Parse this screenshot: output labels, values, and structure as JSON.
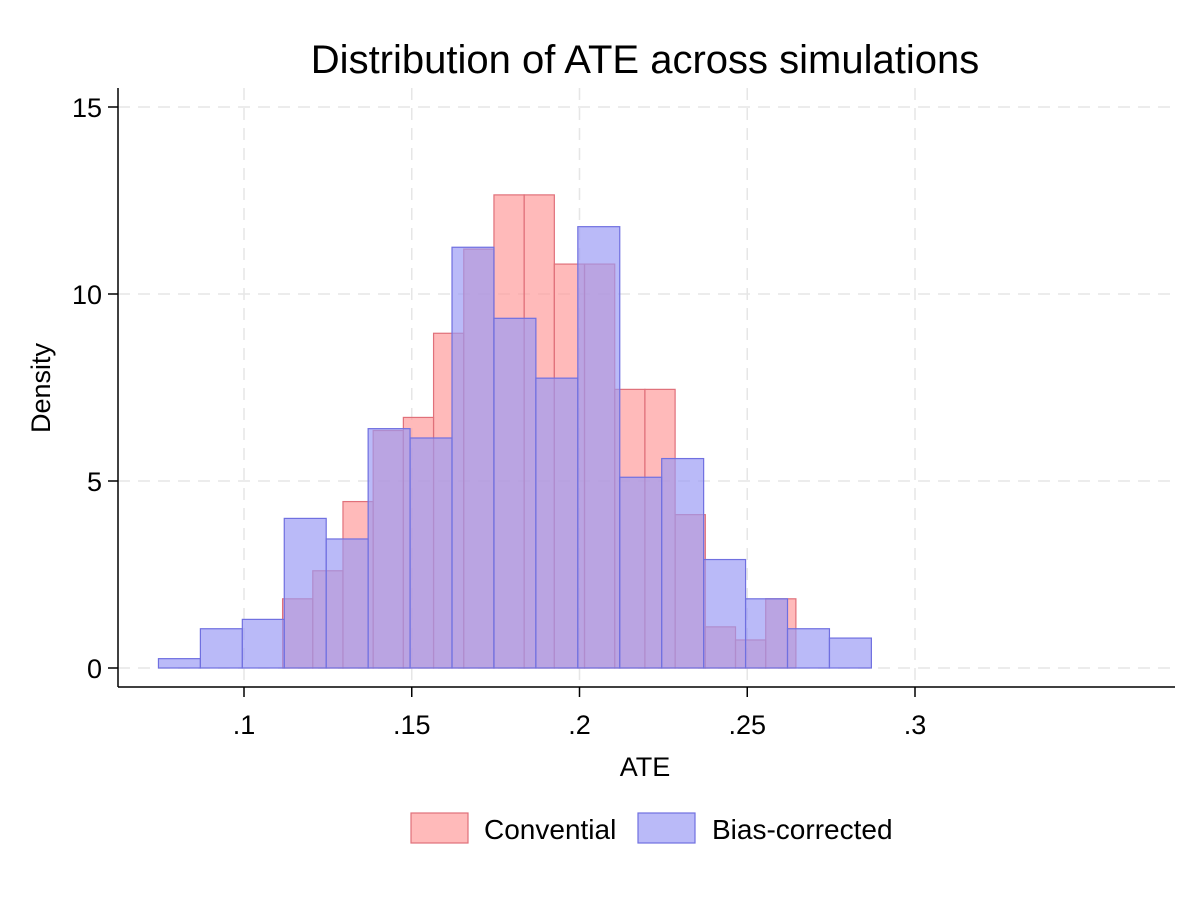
{
  "chart_data": {
    "type": "bar",
    "subtype": "overlaid-histogram",
    "title": "Distribution of ATE across simulations",
    "xlabel": "ATE",
    "ylabel": "Density",
    "xlim": [
      0.075,
      0.3
    ],
    "ylim": [
      -0.5,
      15.5
    ],
    "grid": true,
    "legend_position": "bottom",
    "x_ticks": [
      {
        "value": 0.1,
        "label": ".1"
      },
      {
        "value": 0.15,
        "label": ".15"
      },
      {
        "value": 0.2,
        "label": ".2"
      },
      {
        "value": 0.25,
        "label": ".25"
      },
      {
        "value": 0.3,
        "label": ".3"
      }
    ],
    "y_ticks": [
      {
        "value": 0,
        "label": "0"
      },
      {
        "value": 5,
        "label": "5"
      },
      {
        "value": 10,
        "label": "10"
      },
      {
        "value": 15,
        "label": "15"
      }
    ],
    "series": [
      {
        "name": "Convential",
        "fill": "#ff9a9a",
        "stroke": "#e0707a",
        "bins": [
          {
            "x0": 0.1115,
            "x1": 0.1205,
            "density": 1.85
          },
          {
            "x0": 0.1205,
            "x1": 0.1295,
            "density": 2.6
          },
          {
            "x0": 0.1295,
            "x1": 0.1385,
            "density": 4.45
          },
          {
            "x0": 0.1385,
            "x1": 0.1475,
            "density": 6.35
          },
          {
            "x0": 0.1475,
            "x1": 0.1565,
            "density": 6.7
          },
          {
            "x0": 0.1565,
            "x1": 0.1655,
            "density": 8.95
          },
          {
            "x0": 0.1655,
            "x1": 0.1745,
            "density": 11.2
          },
          {
            "x0": 0.1745,
            "x1": 0.1835,
            "density": 12.65
          },
          {
            "x0": 0.1835,
            "x1": 0.1925,
            "density": 12.65
          },
          {
            "x0": 0.1925,
            "x1": 0.2015,
            "density": 10.8
          },
          {
            "x0": 0.2015,
            "x1": 0.2105,
            "density": 10.8
          },
          {
            "x0": 0.2105,
            "x1": 0.2195,
            "density": 7.45
          },
          {
            "x0": 0.2195,
            "x1": 0.2285,
            "density": 7.45
          },
          {
            "x0": 0.2285,
            "x1": 0.2375,
            "density": 4.1
          },
          {
            "x0": 0.2375,
            "x1": 0.2465,
            "density": 1.1
          },
          {
            "x0": 0.2465,
            "x1": 0.2555,
            "density": 0.75
          },
          {
            "x0": 0.2555,
            "x1": 0.2645,
            "density": 1.85
          }
        ]
      },
      {
        "name": "Bias-corrected",
        "fill": "#9a9af5",
        "stroke": "#7070e0",
        "bins": [
          {
            "x0": 0.0745,
            "x1": 0.087,
            "density": 0.25
          },
          {
            "x0": 0.087,
            "x1": 0.0995,
            "density": 1.05
          },
          {
            "x0": 0.0995,
            "x1": 0.112,
            "density": 1.3
          },
          {
            "x0": 0.112,
            "x1": 0.1245,
            "density": 4.0
          },
          {
            "x0": 0.1245,
            "x1": 0.137,
            "density": 3.45
          },
          {
            "x0": 0.137,
            "x1": 0.1495,
            "density": 6.4
          },
          {
            "x0": 0.1495,
            "x1": 0.162,
            "density": 6.15
          },
          {
            "x0": 0.162,
            "x1": 0.1745,
            "density": 11.25
          },
          {
            "x0": 0.1745,
            "x1": 0.187,
            "density": 9.35
          },
          {
            "x0": 0.187,
            "x1": 0.1995,
            "density": 7.75
          },
          {
            "x0": 0.1995,
            "x1": 0.212,
            "density": 11.8
          },
          {
            "x0": 0.212,
            "x1": 0.2245,
            "density": 5.1
          },
          {
            "x0": 0.2245,
            "x1": 0.237,
            "density": 5.6
          },
          {
            "x0": 0.237,
            "x1": 0.2495,
            "density": 2.9
          },
          {
            "x0": 0.2495,
            "x1": 0.262,
            "density": 1.85
          },
          {
            "x0": 0.262,
            "x1": 0.2745,
            "density": 1.05
          },
          {
            "x0": 0.2745,
            "x1": 0.287,
            "density": 0.8
          }
        ]
      }
    ]
  }
}
